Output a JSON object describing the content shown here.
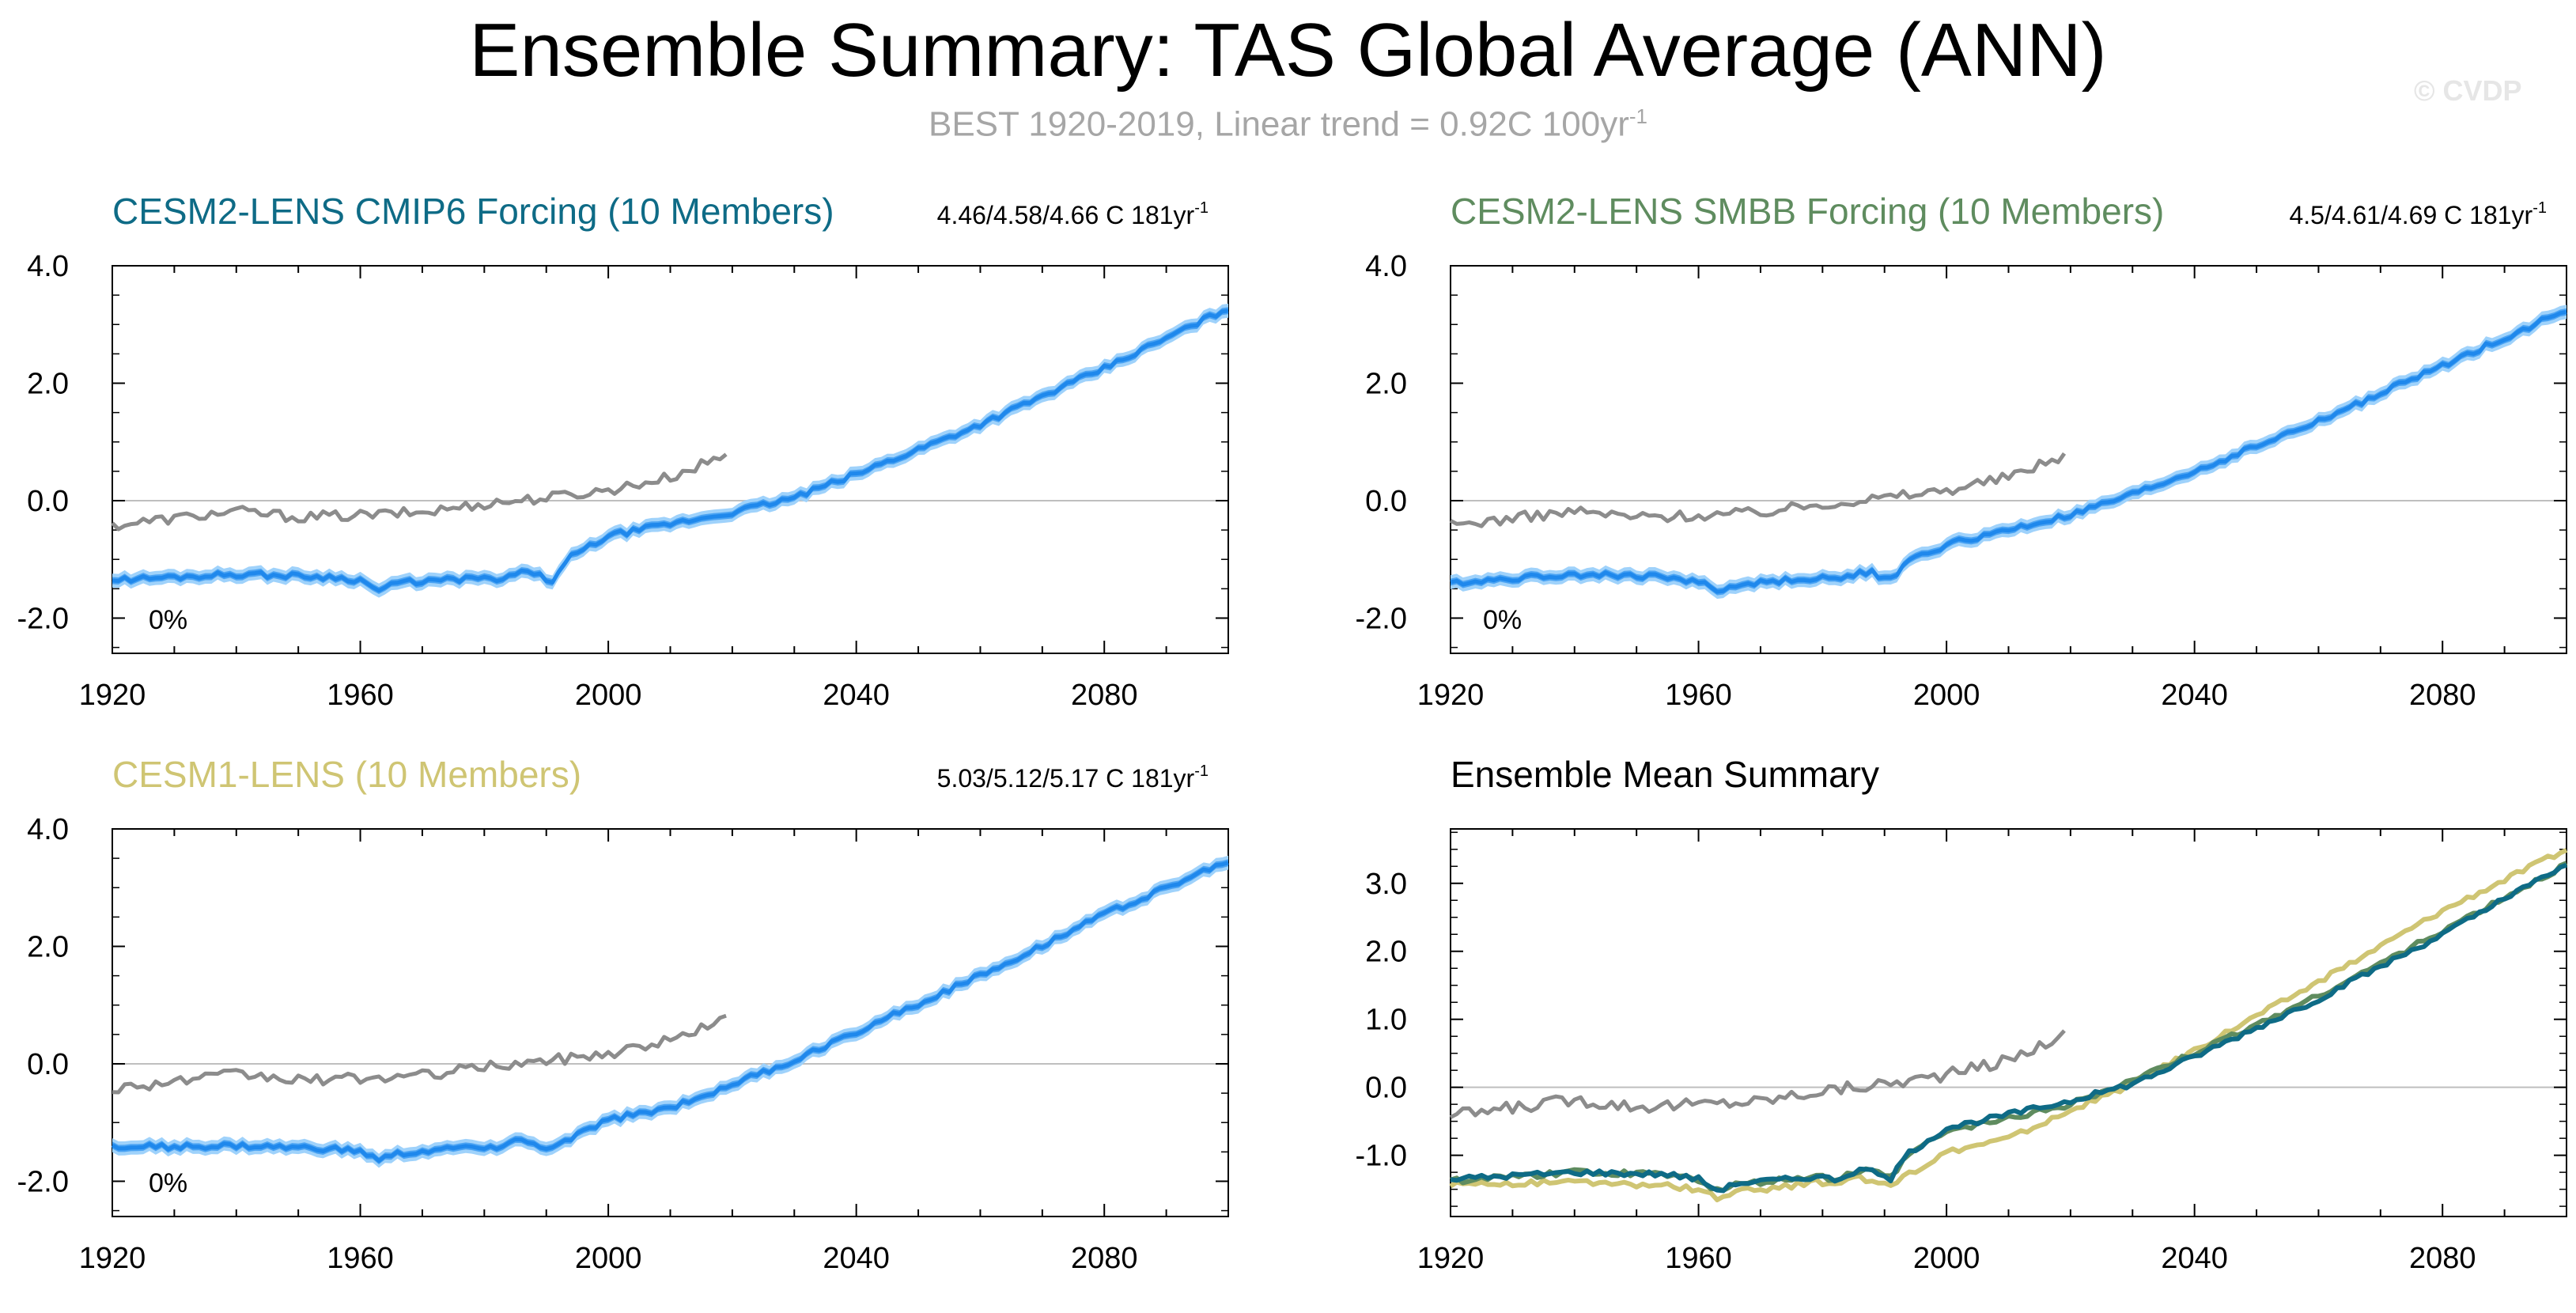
{
  "title": "Ensemble Summary: TAS Global Average (ANN)",
  "subtitle": {
    "text": "BEST 1920-2019, Linear trend = 0.92C 100yr",
    "superscript": "-1"
  },
  "copyright": "© CVDP",
  "colors": {
    "obs": "#8c8c8c",
    "spread_outer": "#9fd2fb",
    "spread_inner": "#4aa3f3",
    "ens_mean": "#1f88ec",
    "cesm2_cmip6": "#0e6b86",
    "cesm2_smbb": "#5f8c5f",
    "cesm1": "#cfc573",
    "zero_line": "#bfbfbf",
    "axis": "#000000"
  },
  "chart_data": [
    {
      "type": "line",
      "id": "cesm2-cmip6",
      "title": "CESM2-LENS CMIP6 Forcing (10 Members)",
      "title_color": "#0e6b86",
      "stats": "4.46/4.58/4.66 C 181yr",
      "stats_sup": "-1",
      "pct_label": "0%",
      "xlim": [
        1920,
        2100
      ],
      "ylim": [
        -2.6,
        4.0
      ],
      "xticks": [
        "1920",
        "1960",
        "2000",
        "2040",
        "2080"
      ],
      "xtick_values": [
        1920,
        1960,
        2000,
        2040,
        2080
      ],
      "yticks": [
        "4.0",
        "2.0",
        "0.0",
        "-2.0"
      ],
      "ytick_values": [
        4.0,
        2.0,
        0.0,
        -2.0
      ],
      "series": [
        {
          "name": "BEST observations",
          "role": "obs",
          "x_start": 1920,
          "x_end": 2019,
          "anchors": [
            [
              1920,
              -0.42
            ],
            [
              1940,
              -0.18
            ],
            [
              1950,
              -0.28
            ],
            [
              1960,
              -0.25
            ],
            [
              1970,
              -0.2
            ],
            [
              1980,
              -0.05
            ],
            [
              1990,
              0.05
            ],
            [
              2000,
              0.18
            ],
            [
              2010,
              0.4
            ],
            [
              2019,
              0.78
            ]
          ],
          "noise": 0.09
        },
        {
          "name": "Ensemble mean",
          "role": "ens",
          "x_start": 1920,
          "x_end": 2100,
          "anchors": [
            [
              1920,
              -1.35
            ],
            [
              1940,
              -1.25
            ],
            [
              1955,
              -1.3
            ],
            [
              1965,
              -1.4
            ],
            [
              1975,
              -1.35
            ],
            [
              1990,
              -1.2
            ],
            [
              2000,
              -0.6
            ],
            [
              2010,
              -0.4
            ],
            [
              2020,
              -0.2
            ],
            [
              2030,
              0.05
            ],
            [
              2040,
              0.45
            ],
            [
              2060,
              1.3
            ],
            [
              2080,
              2.25
            ],
            [
              2100,
              3.28
            ]
          ],
          "dips": [
            [
              1963,
              -0.15
            ],
            [
              1982,
              -0.1
            ],
            [
              1991,
              -0.22
            ]
          ],
          "noise": 0.05,
          "spread_outer": 0.12,
          "spread_inner": 0.06
        }
      ]
    },
    {
      "type": "line",
      "id": "cesm2-smbb",
      "title": "CESM2-LENS SMBB Forcing (10 Members)",
      "title_color": "#5f8c5f",
      "stats": "4.5/4.61/4.69 C 181yr",
      "stats_sup": "-1",
      "pct_label": "0%",
      "xlim": [
        1920,
        2100
      ],
      "ylim": [
        -2.6,
        4.0
      ],
      "xticks": [
        "1920",
        "1960",
        "2000",
        "2040",
        "2080"
      ],
      "xtick_values": [
        1920,
        1960,
        2000,
        2040,
        2080
      ],
      "yticks": [
        "4.0",
        "2.0",
        "0.0",
        "-2.0"
      ],
      "ytick_values": [
        4.0,
        2.0,
        0.0,
        -2.0
      ],
      "series": [
        {
          "name": "BEST observations",
          "role": "obs",
          "x_start": 1920,
          "x_end": 2019,
          "anchors": [
            [
              1920,
              -0.42
            ],
            [
              1940,
              -0.18
            ],
            [
              1950,
              -0.28
            ],
            [
              1960,
              -0.25
            ],
            [
              1970,
              -0.2
            ],
            [
              1980,
              -0.05
            ],
            [
              1990,
              0.05
            ],
            [
              2000,
              0.18
            ],
            [
              2010,
              0.4
            ],
            [
              2019,
              0.78
            ]
          ],
          "noise": 0.09
        },
        {
          "name": "Ensemble mean",
          "role": "ens",
          "x_start": 1920,
          "x_end": 2100,
          "anchors": [
            [
              1920,
              -1.4
            ],
            [
              1940,
              -1.25
            ],
            [
              1955,
              -1.3
            ],
            [
              1965,
              -1.45
            ],
            [
              1975,
              -1.35
            ],
            [
              1990,
              -1.2
            ],
            [
              2000,
              -0.75
            ],
            [
              2010,
              -0.5
            ],
            [
              2020,
              -0.25
            ],
            [
              2030,
              0.1
            ],
            [
              2040,
              0.5
            ],
            [
              2060,
              1.35
            ],
            [
              2080,
              2.3
            ],
            [
              2100,
              3.25
            ]
          ],
          "dips": [
            [
              1963,
              -0.12
            ],
            [
              1982,
              -0.08
            ],
            [
              1991,
              -0.2
            ]
          ],
          "noise": 0.05,
          "spread_outer": 0.12,
          "spread_inner": 0.06
        }
      ]
    },
    {
      "type": "line",
      "id": "cesm1",
      "title": "CESM1-LENS (10 Members)",
      "title_color": "#cfc573",
      "stats": "5.03/5.12/5.17 C 181yr",
      "stats_sup": "-1",
      "pct_label": "0%",
      "xlim": [
        1920,
        2100
      ],
      "ylim": [
        -2.6,
        4.0
      ],
      "xticks": [
        "1920",
        "1960",
        "2000",
        "2040",
        "2080"
      ],
      "xtick_values": [
        1920,
        1960,
        2000,
        2040,
        2080
      ],
      "yticks": [
        "4.0",
        "2.0",
        "0.0",
        "-2.0"
      ],
      "ytick_values": [
        4.0,
        2.0,
        0.0,
        -2.0
      ],
      "series": [
        {
          "name": "BEST observations",
          "role": "obs",
          "x_start": 1920,
          "x_end": 2019,
          "anchors": [
            [
              1920,
              -0.42
            ],
            [
              1940,
              -0.18
            ],
            [
              1950,
              -0.28
            ],
            [
              1960,
              -0.25
            ],
            [
              1970,
              -0.2
            ],
            [
              1980,
              -0.05
            ],
            [
              1990,
              0.05
            ],
            [
              2000,
              0.18
            ],
            [
              2010,
              0.4
            ],
            [
              2019,
              0.78
            ]
          ],
          "noise": 0.09
        },
        {
          "name": "Ensemble mean",
          "role": "ens",
          "x_start": 1920,
          "x_end": 2100,
          "anchors": [
            [
              1920,
              -1.42
            ],
            [
              1940,
              -1.4
            ],
            [
              1955,
              -1.45
            ],
            [
              1965,
              -1.55
            ],
            [
              1975,
              -1.45
            ],
            [
              1985,
              -1.3
            ],
            [
              1991,
              -1.45
            ],
            [
              2000,
              -0.95
            ],
            [
              2010,
              -0.75
            ],
            [
              2020,
              -0.35
            ],
            [
              2030,
              0.05
            ],
            [
              2040,
              0.55
            ],
            [
              2060,
              1.5
            ],
            [
              2080,
              2.55
            ],
            [
              2100,
              3.45
            ]
          ],
          "dips": [
            [
              1963,
              -0.1
            ],
            [
              1982,
              -0.08
            ]
          ],
          "noise": 0.05,
          "spread_outer": 0.12,
          "spread_inner": 0.06
        }
      ]
    },
    {
      "type": "line",
      "id": "ensemble-mean-summary",
      "title": "Ensemble Mean Summary",
      "title_color": "#000000",
      "stats": "",
      "stats_sup": "",
      "pct_label": "",
      "xlim": [
        1920,
        2100
      ],
      "ylim": [
        -1.9,
        3.8
      ],
      "xticks": [
        "1920",
        "1960",
        "2000",
        "2040",
        "2080"
      ],
      "xtick_values": [
        1920,
        1960,
        2000,
        2040,
        2080
      ],
      "yticks": [
        "3.0",
        "2.0",
        "1.0",
        "0.0",
        "-1.0"
      ],
      "ytick_values": [
        3.0,
        2.0,
        1.0,
        0.0,
        -1.0
      ],
      "series": [
        {
          "name": "BEST observations",
          "role": "obs",
          "x_start": 1920,
          "x_end": 2019,
          "anchors": [
            [
              1920,
              -0.42
            ],
            [
              1940,
              -0.18
            ],
            [
              1950,
              -0.28
            ],
            [
              1960,
              -0.25
            ],
            [
              1970,
              -0.2
            ],
            [
              1980,
              -0.05
            ],
            [
              1990,
              0.05
            ],
            [
              2000,
              0.18
            ],
            [
              2010,
              0.4
            ],
            [
              2019,
              0.78
            ]
          ],
          "noise": 0.09
        },
        {
          "name": "CESM1-LENS",
          "role": "line",
          "color": "#cfc573",
          "x_start": 1920,
          "x_end": 2100,
          "anchors": [
            [
              1920,
              -1.42
            ],
            [
              1940,
              -1.4
            ],
            [
              1955,
              -1.45
            ],
            [
              1965,
              -1.55
            ],
            [
              1975,
              -1.45
            ],
            [
              1985,
              -1.3
            ],
            [
              1991,
              -1.45
            ],
            [
              2000,
              -0.95
            ],
            [
              2010,
              -0.75
            ],
            [
              2020,
              -0.35
            ],
            [
              2030,
              0.05
            ],
            [
              2040,
              0.55
            ],
            [
              2060,
              1.55
            ],
            [
              2080,
              2.6
            ],
            [
              2100,
              3.5
            ]
          ],
          "dips": [
            [
              1963,
              -0.1
            ],
            [
              1982,
              -0.08
            ]
          ],
          "noise": 0.04
        },
        {
          "name": "CESM2-LENS SMBB",
          "role": "line",
          "color": "#5f8c5f",
          "x_start": 1920,
          "x_end": 2100,
          "anchors": [
            [
              1920,
              -1.38
            ],
            [
              1940,
              -1.25
            ],
            [
              1955,
              -1.28
            ],
            [
              1965,
              -1.45
            ],
            [
              1975,
              -1.35
            ],
            [
              1990,
              -1.2
            ],
            [
              2000,
              -0.65
            ],
            [
              2010,
              -0.45
            ],
            [
              2020,
              -0.25
            ],
            [
              2030,
              0.1
            ],
            [
              2040,
              0.5
            ],
            [
              2060,
              1.35
            ],
            [
              2080,
              2.3
            ],
            [
              2100,
              3.27
            ]
          ],
          "dips": [
            [
              1963,
              -0.1
            ],
            [
              1982,
              -0.08
            ],
            [
              1991,
              -0.18
            ]
          ],
          "noise": 0.04
        },
        {
          "name": "CESM2-LENS CMIP6",
          "role": "line",
          "color": "#0e6b86",
          "x_start": 1920,
          "x_end": 2100,
          "anchors": [
            [
              1920,
              -1.35
            ],
            [
              1940,
              -1.25
            ],
            [
              1955,
              -1.28
            ],
            [
              1965,
              -1.42
            ],
            [
              1975,
              -1.35
            ],
            [
              1990,
              -1.2
            ],
            [
              2000,
              -0.6
            ],
            [
              2010,
              -0.4
            ],
            [
              2020,
              -0.2
            ],
            [
              2030,
              0.05
            ],
            [
              2040,
              0.45
            ],
            [
              2060,
              1.3
            ],
            [
              2080,
              2.25
            ],
            [
              2100,
              3.28
            ]
          ],
          "dips": [
            [
              1963,
              -0.12
            ],
            [
              1982,
              -0.08
            ],
            [
              1991,
              -0.2
            ]
          ],
          "noise": 0.04
        }
      ]
    }
  ]
}
